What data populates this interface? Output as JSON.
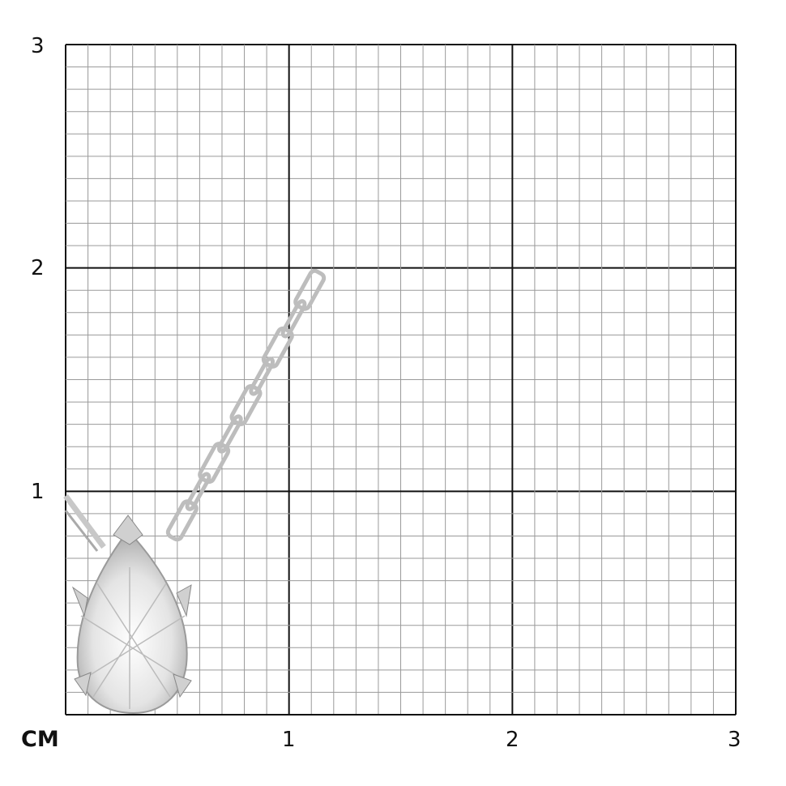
{
  "unit_label": "CM",
  "x_ticks": [
    "1",
    "2",
    "3"
  ],
  "y_ticks": [
    "1",
    "2",
    "3"
  ],
  "grid": {
    "major_step_cm": 1,
    "minor_step_cm": 0.1,
    "range_cm": [
      0,
      3
    ]
  },
  "colors": {
    "major_line": "#111111",
    "minor_line": "#9a9a9a",
    "metal": "#d8d8d8"
  },
  "subject": "pear-pendant"
}
